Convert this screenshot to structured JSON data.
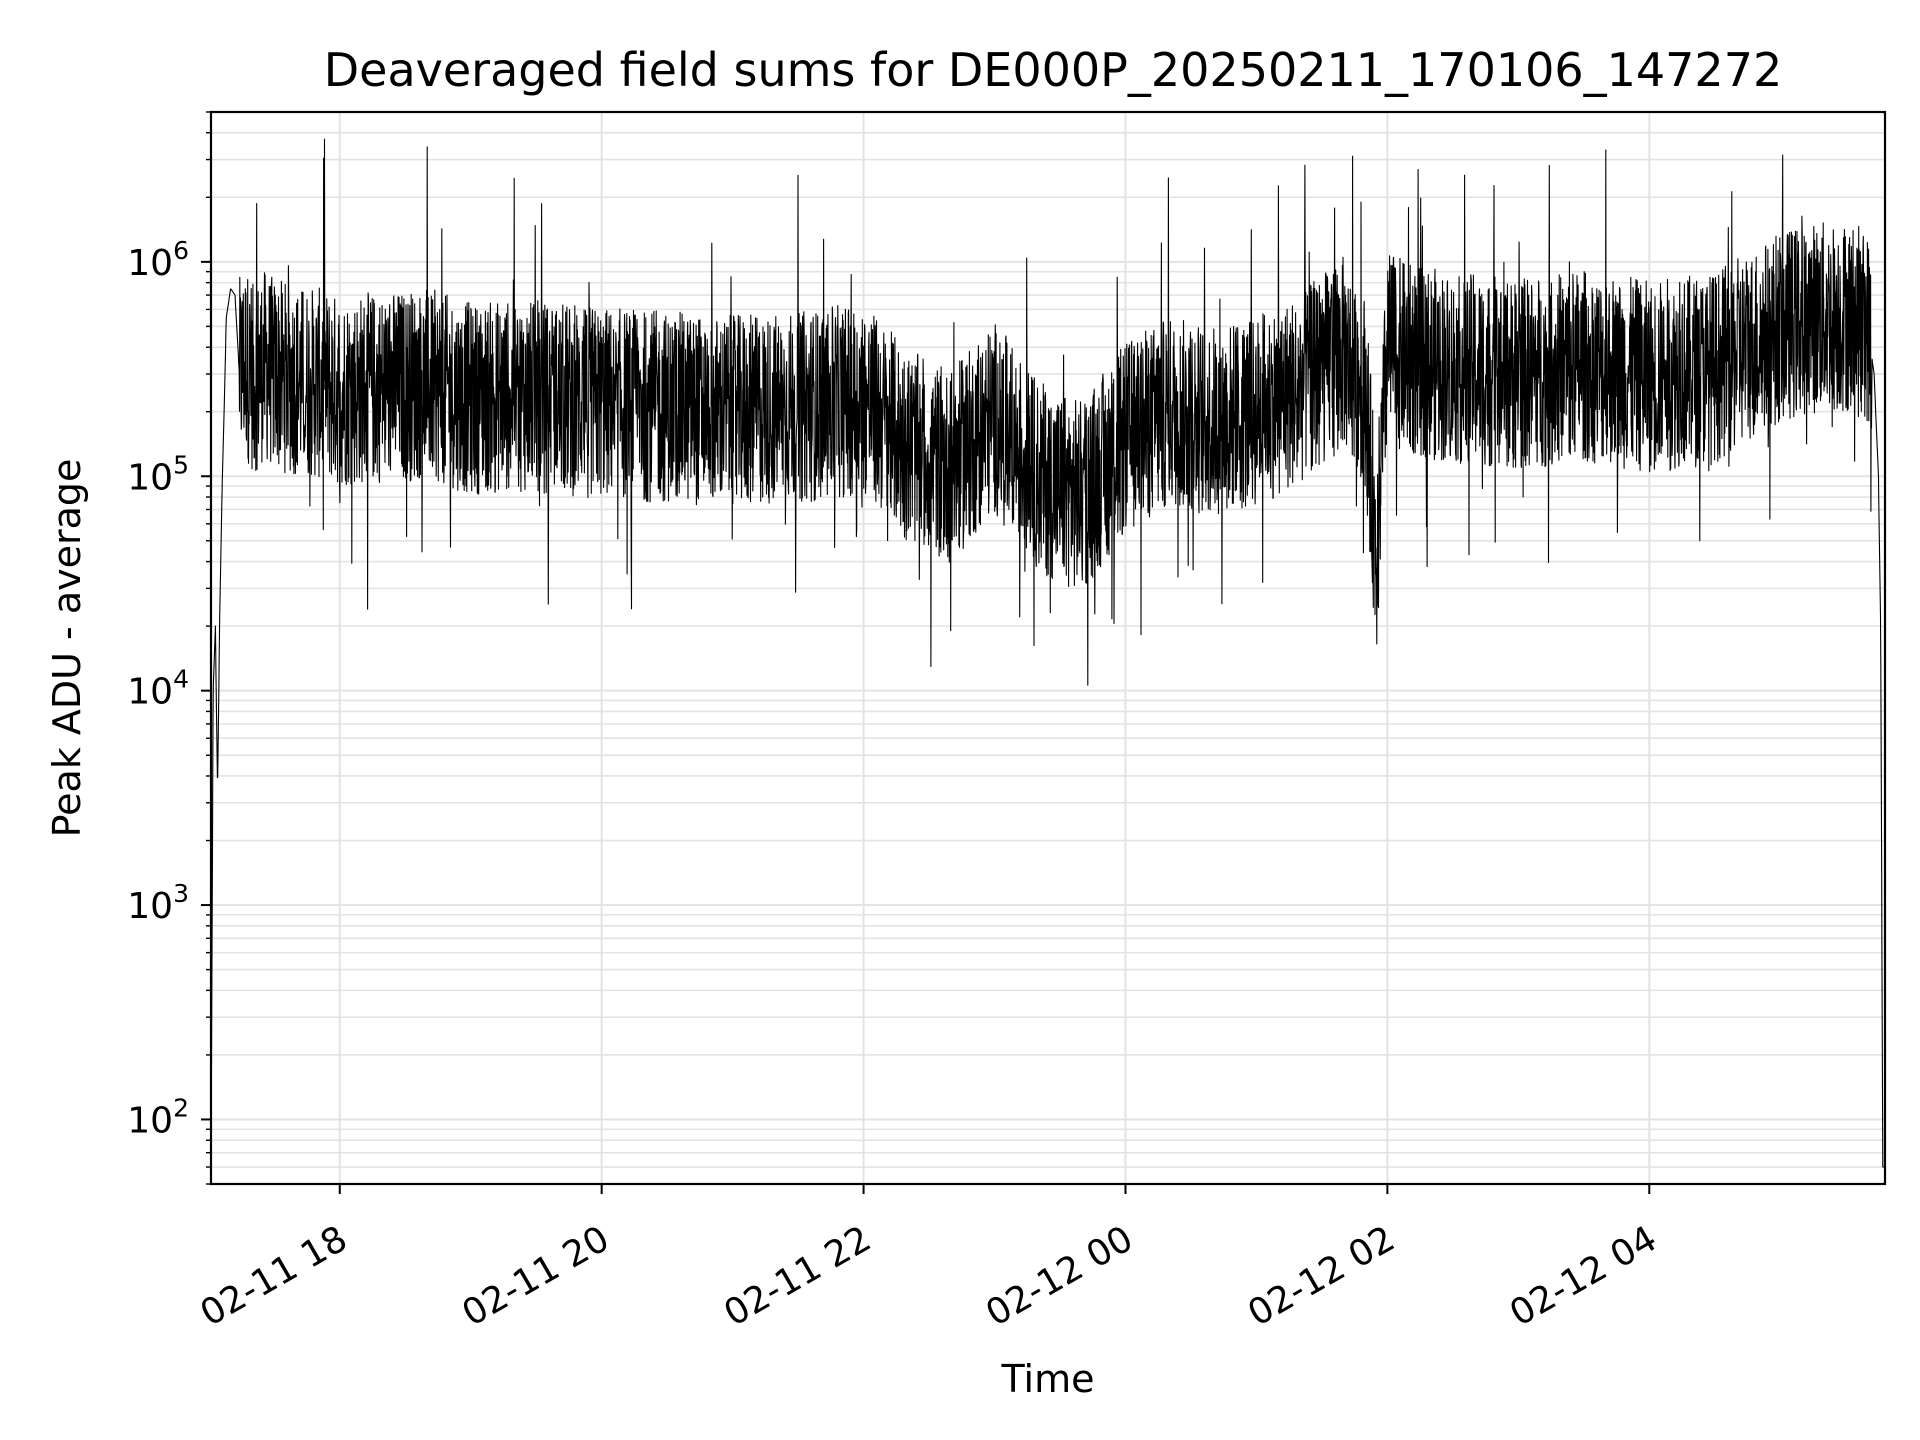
{
  "chart_data": {
    "type": "line",
    "title": "Deaveraged field sums for DE000P_20250211_170106_147272",
    "xlabel": "Time",
    "ylabel": "Peak ADU - average",
    "yscale": "log",
    "ylim": [
      50,
      5000000
    ],
    "xlim": [
      "2025-02-11 17:01",
      "2025-02-12 05:48"
    ],
    "x_ticks": [
      "02-11 18",
      "02-11 20",
      "02-11 22",
      "02-12 00",
      "02-12 02",
      "02-12 04"
    ],
    "y_ticks": [
      {
        "base": "10",
        "exp": "2",
        "value": 100
      },
      {
        "base": "10",
        "exp": "3",
        "value": 1000
      },
      {
        "base": "10",
        "exp": "4",
        "value": 10000
      },
      {
        "base": "10",
        "exp": "5",
        "value": 100000
      },
      {
        "base": "10",
        "exp": "6",
        "value": 1000000
      }
    ],
    "grid": true,
    "legend": "none",
    "line_color": "#000000",
    "grid_color": "#e3e3e3",
    "series": [
      {
        "x": [
          "2025-02-11 17:01",
          "2025-02-11 17:02",
          "2025-02-11 17:03",
          "2025-02-11 17:04",
          "2025-02-11 17:05",
          "2025-02-11 17:06",
          "2025-02-11 17:07",
          "2025-02-11 17:08",
          "2025-02-11 17:10",
          "2025-02-11 17:12",
          "2025-02-11 17:14",
          "2025-02-11 17:17",
          "2025-02-11 17:20",
          "2025-02-11 17:25",
          "2025-02-11 17:30",
          "2025-02-11 17:40",
          "2025-02-11 17:50",
          "2025-02-11 18:00",
          "2025-02-11 18:20",
          "2025-02-11 18:40",
          "2025-02-11 19:00",
          "2025-02-11 19:20",
          "2025-02-11 19:40",
          "2025-02-11 20:00",
          "2025-02-11 20:30",
          "2025-02-11 21:00",
          "2025-02-11 21:30",
          "2025-02-11 22:00",
          "2025-02-11 22:20",
          "2025-02-11 22:40",
          "2025-02-11 23:00",
          "2025-02-11 23:20",
          "2025-02-11 23:40",
          "2025-02-12 00:00",
          "2025-02-12 00:20",
          "2025-02-12 00:40",
          "2025-02-12 01:00",
          "2025-02-12 01:20",
          "2025-02-12 01:40",
          "2025-02-12 01:50",
          "2025-02-12 01:55",
          "2025-02-12 02:00",
          "2025-02-12 02:10",
          "2025-02-12 02:30",
          "2025-02-12 03:00",
          "2025-02-12 03:30",
          "2025-02-12 04:00",
          "2025-02-12 04:30",
          "2025-02-12 05:00",
          "2025-02-12 05:15",
          "2025-02-12 05:30",
          "2025-02-12 05:40",
          "2025-02-12 05:43",
          "2025-02-12 05:45",
          "2025-02-12 05:46",
          "2025-02-12 05:47"
        ],
        "y": [
          60,
          10000,
          20000,
          3500,
          22000,
          80000,
          200000,
          550000,
          750000,
          700000,
          300000,
          350000,
          280000,
          330000,
          300000,
          280000,
          270000,
          250000,
          260000,
          270000,
          230000,
          240000,
          230000,
          220000,
          210000,
          200000,
          210000,
          230000,
          140000,
          110000,
          190000,
          100000,
          80000,
          150000,
          200000,
          180000,
          200000,
          260000,
          380000,
          250000,
          40000,
          400000,
          350000,
          320000,
          300000,
          330000,
          290000,
          320000,
          500000,
          550000,
          560000,
          500000,
          300000,
          100000,
          20000,
          60
        ]
      }
    ]
  }
}
